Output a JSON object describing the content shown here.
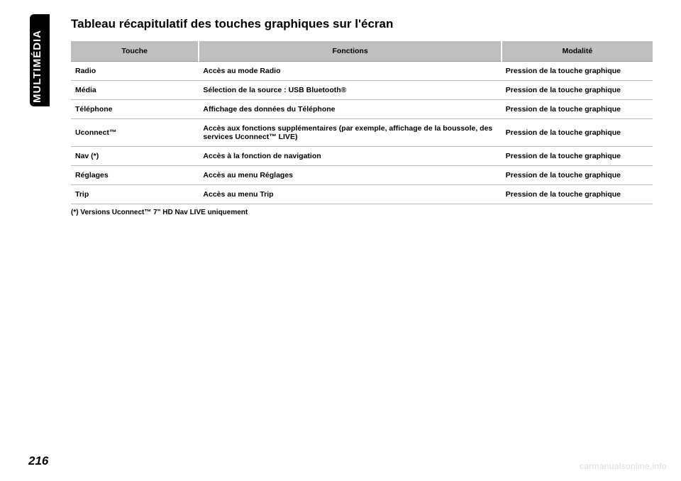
{
  "sidebar": {
    "label": "MULTIMÉDIA"
  },
  "title": "Tableau récapitulatif des touches graphiques sur l'écran",
  "table": {
    "headers": {
      "touche": "Touche",
      "fonctions": "Fonctions",
      "modalite": "Modalité"
    },
    "rows": [
      {
        "touche": "Radio",
        "fonctions": "Accès au mode Radio",
        "modalite": "Pression de la touche graphique"
      },
      {
        "touche": "Média",
        "fonctions": "Sélection de la source : USB Bluetooth®",
        "modalite": "Pression de la touche graphique"
      },
      {
        "touche": "Téléphone",
        "fonctions": "Affichage des données du Téléphone",
        "modalite": "Pression de la touche graphique"
      },
      {
        "touche": "Uconnect™",
        "fonctions": "Accès aux fonctions supplémentaires (par exemple, affichage de la boussole, des services Uconnect™ LIVE)",
        "modalite": "Pression de la touche graphique"
      },
      {
        "touche": "Nav (*)",
        "fonctions": "Accès à la fonction de navigation",
        "modalite": "Pression de la touche graphique"
      },
      {
        "touche": "Réglages",
        "fonctions": "Accès au menu Réglages",
        "modalite": "Pression de la touche graphique"
      },
      {
        "touche": "Trip",
        "fonctions": "Accès au menu Trip",
        "modalite": "Pression de la touche graphique"
      }
    ]
  },
  "footnote": "(*) Versions Uconnect™ 7\" HD Nav LIVE uniquement",
  "pageNumber": "216",
  "watermark": "carmanualsonline.info",
  "colors": {
    "headerBg": "#bfbfbf",
    "sidebarBg": "#000000",
    "text": "#000000",
    "watermark": "#dcdcdc",
    "rowBorder": "#bbbbbb"
  },
  "layout": {
    "pageWidth": 960,
    "pageHeight": 678
  }
}
